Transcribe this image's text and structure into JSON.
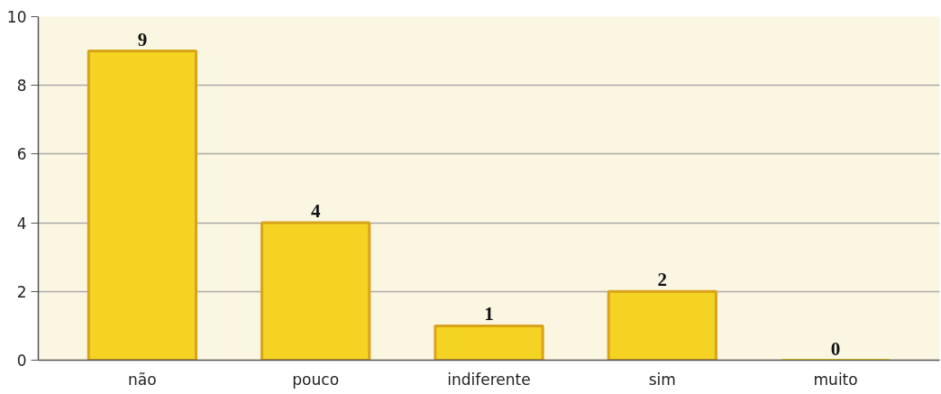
{
  "chart_data": {
    "type": "bar",
    "categories": [
      "não",
      "pouco",
      "indiferente",
      "sim",
      "muito"
    ],
    "values": [
      9,
      4,
      1,
      2,
      0
    ],
    "color": "#f5d322",
    "ylim": [
      0,
      10
    ],
    "yticks": [
      0,
      2,
      4,
      6,
      8,
      10
    ],
    "grid": "y",
    "data_labels": true
  }
}
